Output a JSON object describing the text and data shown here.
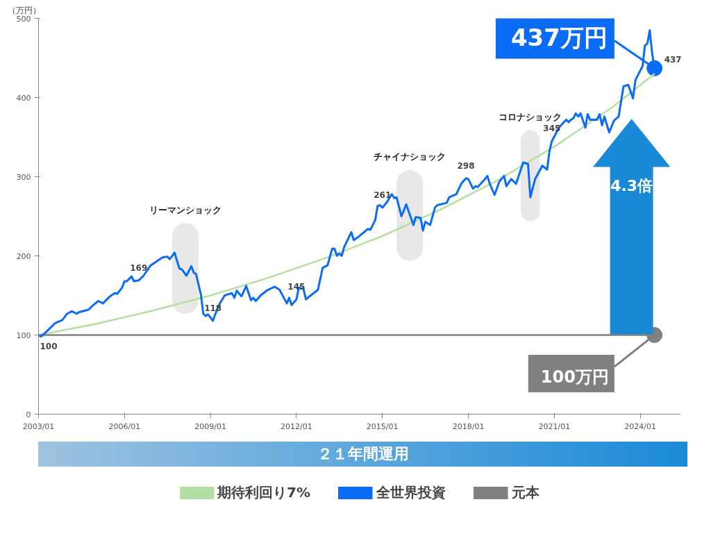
{
  "chart_data": {
    "type": "line",
    "ylabel": "（万円）",
    "legend": "bottom",
    "grid": false,
    "line_style": "solid",
    "xlim": [
      "2003-01",
      "2025-06"
    ],
    "ylim": [
      0,
      500
    ],
    "yticks": [
      0,
      100,
      200,
      300,
      400,
      500
    ],
    "xticks": [
      {
        "value": "2003-01",
        "label": "2003/01"
      },
      {
        "value": "2006-01",
        "label": "2006/01"
      },
      {
        "value": "2009-01",
        "label": "2009/01"
      },
      {
        "value": "2012-01",
        "label": "2012/01"
      },
      {
        "value": "2015-01",
        "label": "2015/01"
      },
      {
        "value": "2018-01",
        "label": "2018/01"
      },
      {
        "value": "2021-01",
        "label": "2021/01"
      },
      {
        "value": "2024-01",
        "label": "2024/01"
      }
    ],
    "series": [
      {
        "name": "期待利回り7%",
        "color": "#b3e0a0",
        "x": [
          "2003-01",
          "2005-01",
          "2007-01",
          "2009-01",
          "2011-01",
          "2013-01",
          "2015-01",
          "2017-01",
          "2019-01",
          "2021-01",
          "2023-01",
          "2024-07"
        ],
        "values": [
          100,
          114,
          131,
          150,
          172,
          197,
          225,
          258,
          295,
          338,
          387,
          430
        ]
      },
      {
        "name": "全世界投資",
        "color": "#0a6cf5",
        "x": [
          "2003-01",
          "2003-02",
          "2003-05",
          "2003-08",
          "2003-11",
          "2004-01",
          "2004-03",
          "2004-05",
          "2004-06",
          "2004-10",
          "2004-12",
          "2005-02",
          "2005-04",
          "2005-07",
          "2005-09",
          "2005-10",
          "2005-12",
          "2006-01",
          "2006-02",
          "2006-04",
          "2006-05",
          "2006-07",
          "2006-09",
          "2006-12",
          "2007-02",
          "2007-03",
          "2007-05",
          "2007-07",
          "2007-08",
          "2007-10",
          "2007-12",
          "2008-01",
          "2008-03",
          "2008-05",
          "2008-06",
          "2008-07",
          "2008-09",
          "2008-10",
          "2008-11",
          "2008-12",
          "2009-02",
          "2009-03",
          "2009-05",
          "2009-07",
          "2009-10",
          "2009-11",
          "2009-12",
          "2010-02",
          "2010-04",
          "2010-06",
          "2010-07",
          "2010-08",
          "2010-10",
          "2011-01",
          "2011-04",
          "2011-06",
          "2011-09",
          "2011-10",
          "2011-11",
          "2012-01",
          "2012-02",
          "2012-04",
          "2012-05",
          "2012-07",
          "2012-10",
          "2012-12",
          "2013-02",
          "2013-04",
          "2013-05",
          "2013-06",
          "2013-07",
          "2013-08",
          "2013-09",
          "2013-12",
          "2014-01",
          "2014-03",
          "2014-07",
          "2014-08",
          "2014-10",
          "2014-11",
          "2014-12",
          "2015-01",
          "2015-03",
          "2015-05",
          "2015-06",
          "2015-07",
          "2015-09",
          "2015-11",
          "2016-02",
          "2016-03",
          "2016-05",
          "2016-06",
          "2016-07",
          "2016-09",
          "2016-11",
          "2016-12",
          "2017-04",
          "2017-05",
          "2017-08",
          "2017-10",
          "2017-12",
          "2018-01",
          "2018-03",
          "2018-04",
          "2018-05",
          "2018-08",
          "2018-09",
          "2018-10",
          "2018-12",
          "2019-02",
          "2019-04",
          "2019-05",
          "2019-07",
          "2019-09",
          "2019-12",
          "2020-02",
          "2020-03",
          "2020-05",
          "2020-08",
          "2020-10",
          "2020-11",
          "2020-12",
          "2021-03",
          "2021-06",
          "2021-07",
          "2021-08",
          "2021-09",
          "2021-10",
          "2021-11",
          "2021-12",
          "2022-02",
          "2022-03",
          "2022-04",
          "2022-07",
          "2022-08",
          "2022-09",
          "2022-10",
          "2022-12",
          "2023-02",
          "2023-04",
          "2023-06",
          "2023-08",
          "2023-10",
          "2023-11",
          "2024-02",
          "2024-03",
          "2024-04",
          "2024-05",
          "2024-06",
          "2024-07"
        ],
        "values": [
          100,
          98,
          106,
          115,
          119,
          127,
          130,
          127,
          129,
          132,
          138,
          143,
          140,
          149,
          153,
          152,
          160,
          168,
          168,
          174,
          168,
          169,
          175,
          188,
          192,
          194,
          198,
          199,
          196,
          204,
          184,
          183,
          175,
          187,
          179,
          177,
          151,
          127,
          124,
          126,
          118,
          126,
          140,
          150,
          153,
          147,
          156,
          149,
          162,
          144,
          147,
          143,
          150,
          157,
          161,
          157,
          140,
          147,
          138,
          145,
          160,
          158,
          145,
          150,
          157,
          185,
          188,
          209,
          209,
          200,
          203,
          200,
          211,
          230,
          220,
          224,
          234,
          233,
          245,
          263,
          264,
          261,
          268,
          278,
          273,
          274,
          250,
          265,
          239,
          249,
          248,
          232,
          243,
          239,
          261,
          264,
          267,
          274,
          278,
          291,
          298,
          297,
          285,
          288,
          287,
          297,
          301,
          291,
          277,
          294,
          301,
          288,
          297,
          291,
          318,
          316,
          274,
          297,
          314,
          309,
          333,
          345,
          362,
          372,
          369,
          372,
          374,
          380,
          376,
          380,
          362,
          379,
          372,
          372,
          379,
          365,
          376,
          356,
          371,
          376,
          414,
          416,
          399,
          422,
          440,
          466,
          468,
          485,
          456,
          437
        ],
        "value_labels": [
          "100",
          null,
          null,
          null,
          null,
          null,
          null,
          null,
          null,
          null,
          null,
          null,
          null,
          null,
          null,
          null,
          null,
          null,
          null,
          null,
          null,
          "169",
          null,
          null,
          null,
          null,
          null,
          null,
          null,
          null,
          null,
          null,
          null,
          null,
          null,
          null,
          null,
          null,
          null,
          null,
          "118",
          null,
          null,
          null,
          null,
          null,
          null,
          null,
          null,
          null,
          null,
          null,
          null,
          null,
          null,
          null,
          null,
          null,
          null,
          "145",
          null,
          null,
          null,
          null,
          null,
          null,
          null,
          null,
          null,
          null,
          null,
          null,
          null,
          null,
          null,
          null,
          null,
          null,
          null,
          null,
          null,
          "261",
          null,
          null,
          null,
          null,
          null,
          null,
          null,
          null,
          null,
          null,
          null,
          null,
          null,
          null,
          null,
          null,
          null,
          null,
          "298",
          null,
          null,
          null,
          null,
          null,
          null,
          null,
          null,
          null,
          null,
          null,
          null,
          null,
          null,
          null,
          null,
          null,
          null,
          null,
          null,
          "345",
          null,
          null,
          null,
          null,
          null,
          null,
          null,
          null,
          null,
          null,
          null,
          null,
          null,
          null,
          null,
          null,
          null,
          null,
          null,
          null,
          null,
          null,
          null,
          null,
          null,
          null,
          null,
          "437"
        ]
      },
      {
        "name": "元本",
        "color": "#808080",
        "x": [
          "2003-01",
          "2024-07"
        ],
        "values": [
          100,
          100
        ]
      }
    ],
    "bands": [
      {
        "axis": "x",
        "from": "2007-09",
        "to": "2008-08",
        "label": "リーマンショック",
        "color": "#e6e6e6"
      },
      {
        "axis": "x",
        "from": "2015-07",
        "to": "2016-06",
        "label": "チャイナショック",
        "color": "#e6e6e6"
      },
      {
        "axis": "x",
        "from": "2019-11",
        "to": "2020-07",
        "label": "コロナショック",
        "color": "#e6e6e6"
      }
    ],
    "annotations": [
      {
        "text": "437万円",
        "x": "2024-07",
        "y": 437
      },
      {
        "text": "100万円",
        "x": "2024-07",
        "y": 100
      },
      "4.3倍",
      "２１年間運用"
    ]
  }
}
